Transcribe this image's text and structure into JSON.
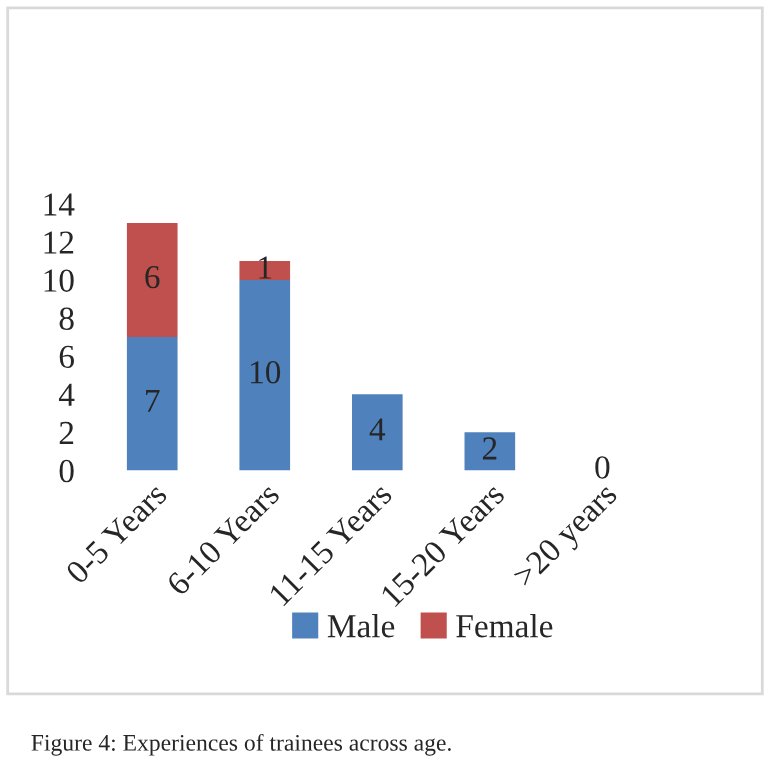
{
  "chart_data": {
    "type": "bar",
    "stacked": true,
    "categories": [
      "0-5 Years",
      "6-10 Years",
      "11-15 Years",
      "15-20 Years",
      ">20 years"
    ],
    "series": [
      {
        "name": "Male",
        "color": "#4f81bd",
        "values": [
          7,
          10,
          4,
          2,
          0
        ],
        "value_labels": [
          "7",
          "10",
          "4",
          "2",
          "0"
        ]
      },
      {
        "name": "Female",
        "color": "#c0504d",
        "values": [
          6,
          1,
          0,
          0,
          0
        ],
        "value_labels": [
          "6",
          "1",
          null,
          null,
          null
        ]
      }
    ],
    "ylim": [
      0,
      14
    ],
    "yticks": [
      0,
      2,
      4,
      6,
      8,
      10,
      12,
      14
    ],
    "grid": false,
    "legend": "bottom",
    "annotations": [
      "Figure 4: Experiences of trainees across age."
    ]
  }
}
